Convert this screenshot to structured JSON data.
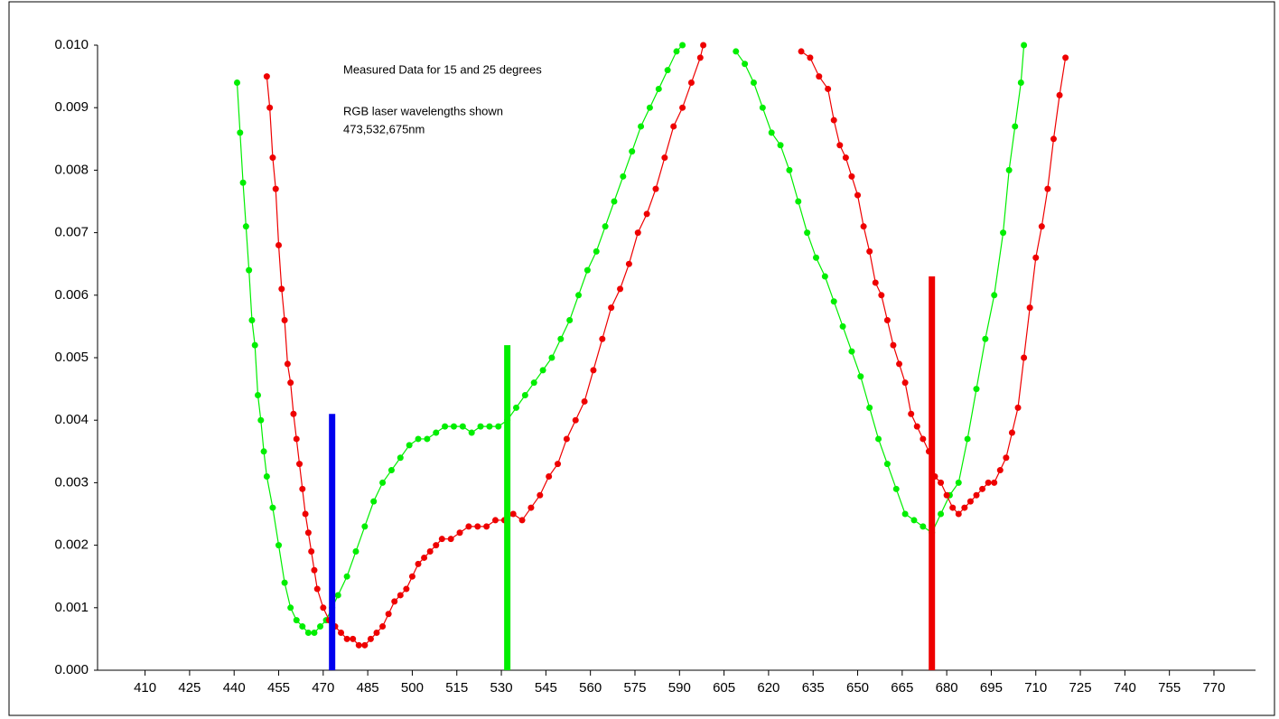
{
  "chart_data": {
    "type": "line",
    "annotations": [
      "Measured Data for 15 and 25 degrees",
      "RGB laser wavelengths shown",
      "473,532,675nm"
    ],
    "xlim": [
      394,
      784
    ],
    "xticks": [
      410,
      425,
      440,
      455,
      470,
      485,
      500,
      515,
      530,
      545,
      560,
      575,
      590,
      605,
      620,
      635,
      650,
      665,
      680,
      695,
      710,
      725,
      740,
      755,
      770
    ],
    "ylim": [
      0,
      0.01
    ],
    "yticks": [
      {
        "value": 0,
        "label": "0.000"
      },
      {
        "value": 0.001,
        "label": "0.001"
      },
      {
        "value": 0.002,
        "label": "0.002"
      },
      {
        "value": 0.003,
        "label": "0.003"
      },
      {
        "value": 0.004,
        "label": "0.004"
      },
      {
        "value": 0.005,
        "label": "0.005"
      },
      {
        "value": 0.006,
        "label": "0.006"
      },
      {
        "value": 0.007,
        "label": "0.007"
      },
      {
        "value": 0.008,
        "label": "0.008"
      },
      {
        "value": 0.009,
        "label": "0.009"
      },
      {
        "value": 0.01,
        "label": "0.010"
      }
    ],
    "series": [
      {
        "color": "#00ee00",
        "x": [
          441,
          442,
          443,
          444,
          445,
          446,
          447,
          448,
          449,
          450,
          451,
          453,
          455,
          457,
          459,
          461,
          463,
          465,
          467,
          469,
          471,
          473,
          475,
          478,
          481,
          484,
          487,
          490,
          493,
          496,
          499,
          502,
          505,
          508,
          511,
          514,
          517,
          520,
          523,
          526,
          529,
          532,
          535,
          538,
          541,
          544,
          547,
          550,
          553,
          556,
          559,
          562,
          565,
          568,
          571,
          574,
          577,
          580,
          583,
          586,
          589,
          591,
          600,
          609,
          612,
          615,
          618,
          621,
          624,
          627,
          630,
          633,
          636,
          639,
          642,
          645,
          648,
          651,
          654,
          657,
          660,
          663,
          666,
          669,
          672,
          675,
          678,
          681,
          684,
          687,
          690,
          693,
          696,
          699,
          701,
          703,
          705,
          706
        ],
        "values": [
          0.0094,
          0.0086,
          0.0078,
          0.0071,
          0.0064,
          0.0056,
          0.0052,
          0.0044,
          0.004,
          0.0035,
          0.0031,
          0.0026,
          0.002,
          0.0014,
          0.001,
          0.0008,
          0.0007,
          0.0006,
          0.0006,
          0.0007,
          0.0008,
          0.001,
          0.0012,
          0.0015,
          0.0019,
          0.0023,
          0.0027,
          0.003,
          0.0032,
          0.0034,
          0.0036,
          0.0037,
          0.0037,
          0.0038,
          0.0039,
          0.0039,
          0.0039,
          0.0038,
          0.0039,
          0.0039,
          0.0039,
          0.004,
          0.0042,
          0.0044,
          0.0046,
          0.0048,
          0.005,
          0.0053,
          0.0056,
          0.006,
          0.0064,
          0.0067,
          0.0071,
          0.0075,
          0.0079,
          0.0083,
          0.0087,
          0.009,
          0.0093,
          0.0096,
          0.0099,
          0.01,
          null,
          0.0099,
          0.0097,
          0.0094,
          0.009,
          0.0086,
          0.0084,
          0.008,
          0.0075,
          0.007,
          0.0066,
          0.0063,
          0.0059,
          0.0055,
          0.0051,
          0.0047,
          0.0042,
          0.0037,
          0.0033,
          0.0029,
          0.0025,
          0.0024,
          0.0023,
          0.0022,
          0.0025,
          0.0028,
          0.003,
          0.0037,
          0.0045,
          0.0053,
          0.006,
          0.007,
          0.008,
          0.0087,
          0.0094,
          0.01
        ]
      },
      {
        "color": "#ee0000",
        "x": [
          451,
          452,
          453,
          454,
          455,
          456,
          457,
          458,
          459,
          460,
          461,
          462,
          463,
          464,
          465,
          466,
          467,
          468,
          470,
          472,
          474,
          476,
          478,
          480,
          482,
          484,
          486,
          488,
          490,
          492,
          494,
          496,
          498,
          500,
          502,
          504,
          506,
          508,
          510,
          513,
          516,
          519,
          522,
          525,
          528,
          531,
          534,
          537,
          540,
          543,
          546,
          549,
          552,
          555,
          558,
          561,
          564,
          567,
          570,
          573,
          576,
          579,
          582,
          585,
          588,
          591,
          594,
          597,
          598,
          615,
          631,
          634,
          637,
          640,
          642,
          644,
          646,
          648,
          650,
          652,
          654,
          656,
          658,
          660,
          662,
          664,
          666,
          668,
          670,
          672,
          674,
          676,
          678,
          680,
          682,
          684,
          686,
          688,
          690,
          692,
          694,
          696,
          698,
          700,
          702,
          704,
          706,
          708,
          710,
          712,
          714,
          716,
          718,
          720
        ],
        "values": [
          0.0095,
          0.009,
          0.0082,
          0.0077,
          0.0068,
          0.0061,
          0.0056,
          0.0049,
          0.0046,
          0.0041,
          0.0037,
          0.0033,
          0.0029,
          0.0025,
          0.0022,
          0.0019,
          0.0016,
          0.0013,
          0.001,
          0.0008,
          0.0007,
          0.0006,
          0.0005,
          0.0005,
          0.0004,
          0.0004,
          0.0005,
          0.0006,
          0.0007,
          0.0009,
          0.0011,
          0.0012,
          0.0013,
          0.0015,
          0.0017,
          0.0018,
          0.0019,
          0.002,
          0.0021,
          0.0021,
          0.0022,
          0.0023,
          0.0023,
          0.0023,
          0.0024,
          0.0024,
          0.0025,
          0.0024,
          0.0026,
          0.0028,
          0.0031,
          0.0033,
          0.0037,
          0.004,
          0.0043,
          0.0048,
          0.0053,
          0.0058,
          0.0061,
          0.0065,
          0.007,
          0.0073,
          0.0077,
          0.0082,
          0.0087,
          0.009,
          0.0094,
          0.0098,
          0.01,
          null,
          0.0099,
          0.0098,
          0.0095,
          0.0093,
          0.0088,
          0.0084,
          0.0082,
          0.0079,
          0.0076,
          0.0071,
          0.0067,
          0.0062,
          0.006,
          0.0056,
          0.0052,
          0.0049,
          0.0046,
          0.0041,
          0.0039,
          0.0037,
          0.0035,
          0.0031,
          0.003,
          0.0028,
          0.0026,
          0.0025,
          0.0026,
          0.0027,
          0.0028,
          0.0029,
          0.003,
          0.003,
          0.0032,
          0.0034,
          0.0038,
          0.0042,
          0.005,
          0.0058,
          0.0066,
          0.0071,
          0.0077,
          0.0085,
          0.0092,
          0.0098
        ]
      }
    ],
    "lasers": [
      {
        "x": 473,
        "value": 0.0041,
        "color": "#0000ee"
      },
      {
        "x": 532,
        "value": 0.0052,
        "color": "#00ee00"
      },
      {
        "x": 675,
        "value": 0.0063,
        "color": "#ee0000"
      }
    ]
  }
}
